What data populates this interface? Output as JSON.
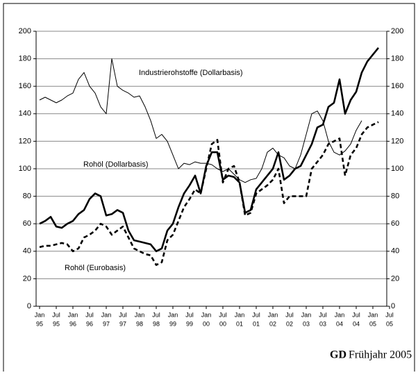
{
  "chart_data": {
    "type": "line",
    "x": [
      "Jan 95",
      "Mar 95",
      "May 95",
      "Jul 95",
      "Sep 95",
      "Nov 95",
      "Jan 96",
      "Mar 96",
      "May 96",
      "Jul 96",
      "Sep 96",
      "Nov 96",
      "Jan 97",
      "Mar 97",
      "May 97",
      "Jul 97",
      "Sep 97",
      "Nov 97",
      "Jan 98",
      "Mar 98",
      "May 98",
      "Jul 98",
      "Sep 98",
      "Nov 98",
      "Jan 99",
      "Mar 99",
      "May 99",
      "Jul 99",
      "Sep 99",
      "Nov 99",
      "Jan 00",
      "Mar 00",
      "May 00",
      "Jul 00",
      "Sep 00",
      "Nov 00",
      "Jan 01",
      "Mar 01",
      "May 01",
      "Jul 01",
      "Sep 01",
      "Nov 01",
      "Jan 02",
      "Mar 02",
      "May 02",
      "Jul 02",
      "Sep 02",
      "Nov 02",
      "Jan 03",
      "Mar 03",
      "May 03",
      "Jul 03",
      "Sep 03",
      "Nov 03",
      "Jan 04",
      "Mar 04",
      "May 04",
      "Jul 04",
      "Sep 04",
      "Nov 04",
      "Jan 05",
      "Mar 05"
    ],
    "series": [
      {
        "name": "Industrierohstoffe (Dollarbasis)",
        "color": "#000000",
        "bold": false,
        "dashed": false,
        "values": [
          150,
          152,
          150,
          148,
          150,
          153,
          155,
          165,
          170,
          160,
          155,
          145,
          140,
          180,
          160,
          157,
          155,
          152,
          153,
          145,
          135,
          122,
          125,
          120,
          110,
          100,
          104,
          103,
          105,
          104,
          104,
          103,
          100,
          98,
          100,
          96,
          92,
          90,
          92,
          93,
          100,
          112,
          115,
          110,
          108,
          102,
          100,
          110,
          125,
          140,
          142,
          135,
          120,
          112,
          110,
          113,
          118,
          128,
          135,
          null,
          null,
          null
        ]
      },
      {
        "name": "Rohöl (Dollarbasis)",
        "color": "#000000",
        "bold": true,
        "dashed": false,
        "values": [
          60,
          62,
          65,
          58,
          57,
          60,
          62,
          67,
          70,
          78,
          82,
          80,
          66,
          67,
          70,
          68,
          55,
          48,
          47,
          46,
          45,
          40,
          42,
          55,
          60,
          72,
          82,
          88,
          95,
          82,
          102,
          112,
          112,
          92,
          95,
          94,
          90,
          68,
          70,
          85,
          90,
          95,
          100,
          112,
          92,
          95,
          100,
          102,
          110,
          118,
          130,
          132,
          145,
          148,
          165,
          140,
          150,
          156,
          170,
          178,
          183,
          188
        ]
      },
      {
        "name": "Rohöl (Eurobasis)",
        "color": "#000000",
        "bold": true,
        "dashed": true,
        "values": [
          43,
          44,
          44,
          45,
          46,
          45,
          40,
          42,
          50,
          52,
          55,
          60,
          58,
          52,
          55,
          58,
          50,
          42,
          40,
          38,
          37,
          30,
          32,
          48,
          52,
          62,
          72,
          78,
          85,
          82,
          100,
          118,
          121,
          90,
          100,
          102,
          90,
          66,
          68,
          82,
          85,
          88,
          92,
          100,
          75,
          80,
          80,
          80,
          80,
          100,
          105,
          110,
          118,
          120,
          122,
          95,
          110,
          115,
          125,
          130,
          132,
          134
        ]
      }
    ],
    "xticks": [
      {
        "month": "Jan",
        "year": "95"
      },
      {
        "month": "Jul",
        "year": "95"
      },
      {
        "month": "Jan",
        "year": "96"
      },
      {
        "month": "Jul",
        "year": "96"
      },
      {
        "month": "Jan",
        "year": "97"
      },
      {
        "month": "Jul",
        "year": "97"
      },
      {
        "month": "Jan",
        "year": "98"
      },
      {
        "month": "Jul",
        "year": "98"
      },
      {
        "month": "Jan",
        "year": "99"
      },
      {
        "month": "Jul",
        "year": "99"
      },
      {
        "month": "Jan",
        "year": "00"
      },
      {
        "month": "Jul",
        "year": "00"
      },
      {
        "month": "Jan",
        "year": "01"
      },
      {
        "month": "Jul",
        "year": "01"
      },
      {
        "month": "Jan",
        "year": "02"
      },
      {
        "month": "Jul",
        "year": "02"
      },
      {
        "month": "Jan",
        "year": "03"
      },
      {
        "month": "Jul",
        "year": "03"
      },
      {
        "month": "Jan",
        "year": "04"
      },
      {
        "month": "Jul",
        "year": "04"
      },
      {
        "month": "Jan",
        "year": "05"
      },
      {
        "month": "Jul",
        "year": "05"
      }
    ],
    "ylim": [
      0,
      200
    ],
    "yticks": [
      0,
      20,
      40,
      60,
      80,
      100,
      120,
      140,
      160,
      180,
      200
    ],
    "y2lim": [
      0,
      200
    ],
    "y2ticks": [
      0,
      20,
      40,
      60,
      80,
      100,
      120,
      140,
      160,
      180,
      200
    ],
    "grid": true,
    "source": {
      "bold": "GD",
      "text": "Frühjahr 2005"
    }
  }
}
